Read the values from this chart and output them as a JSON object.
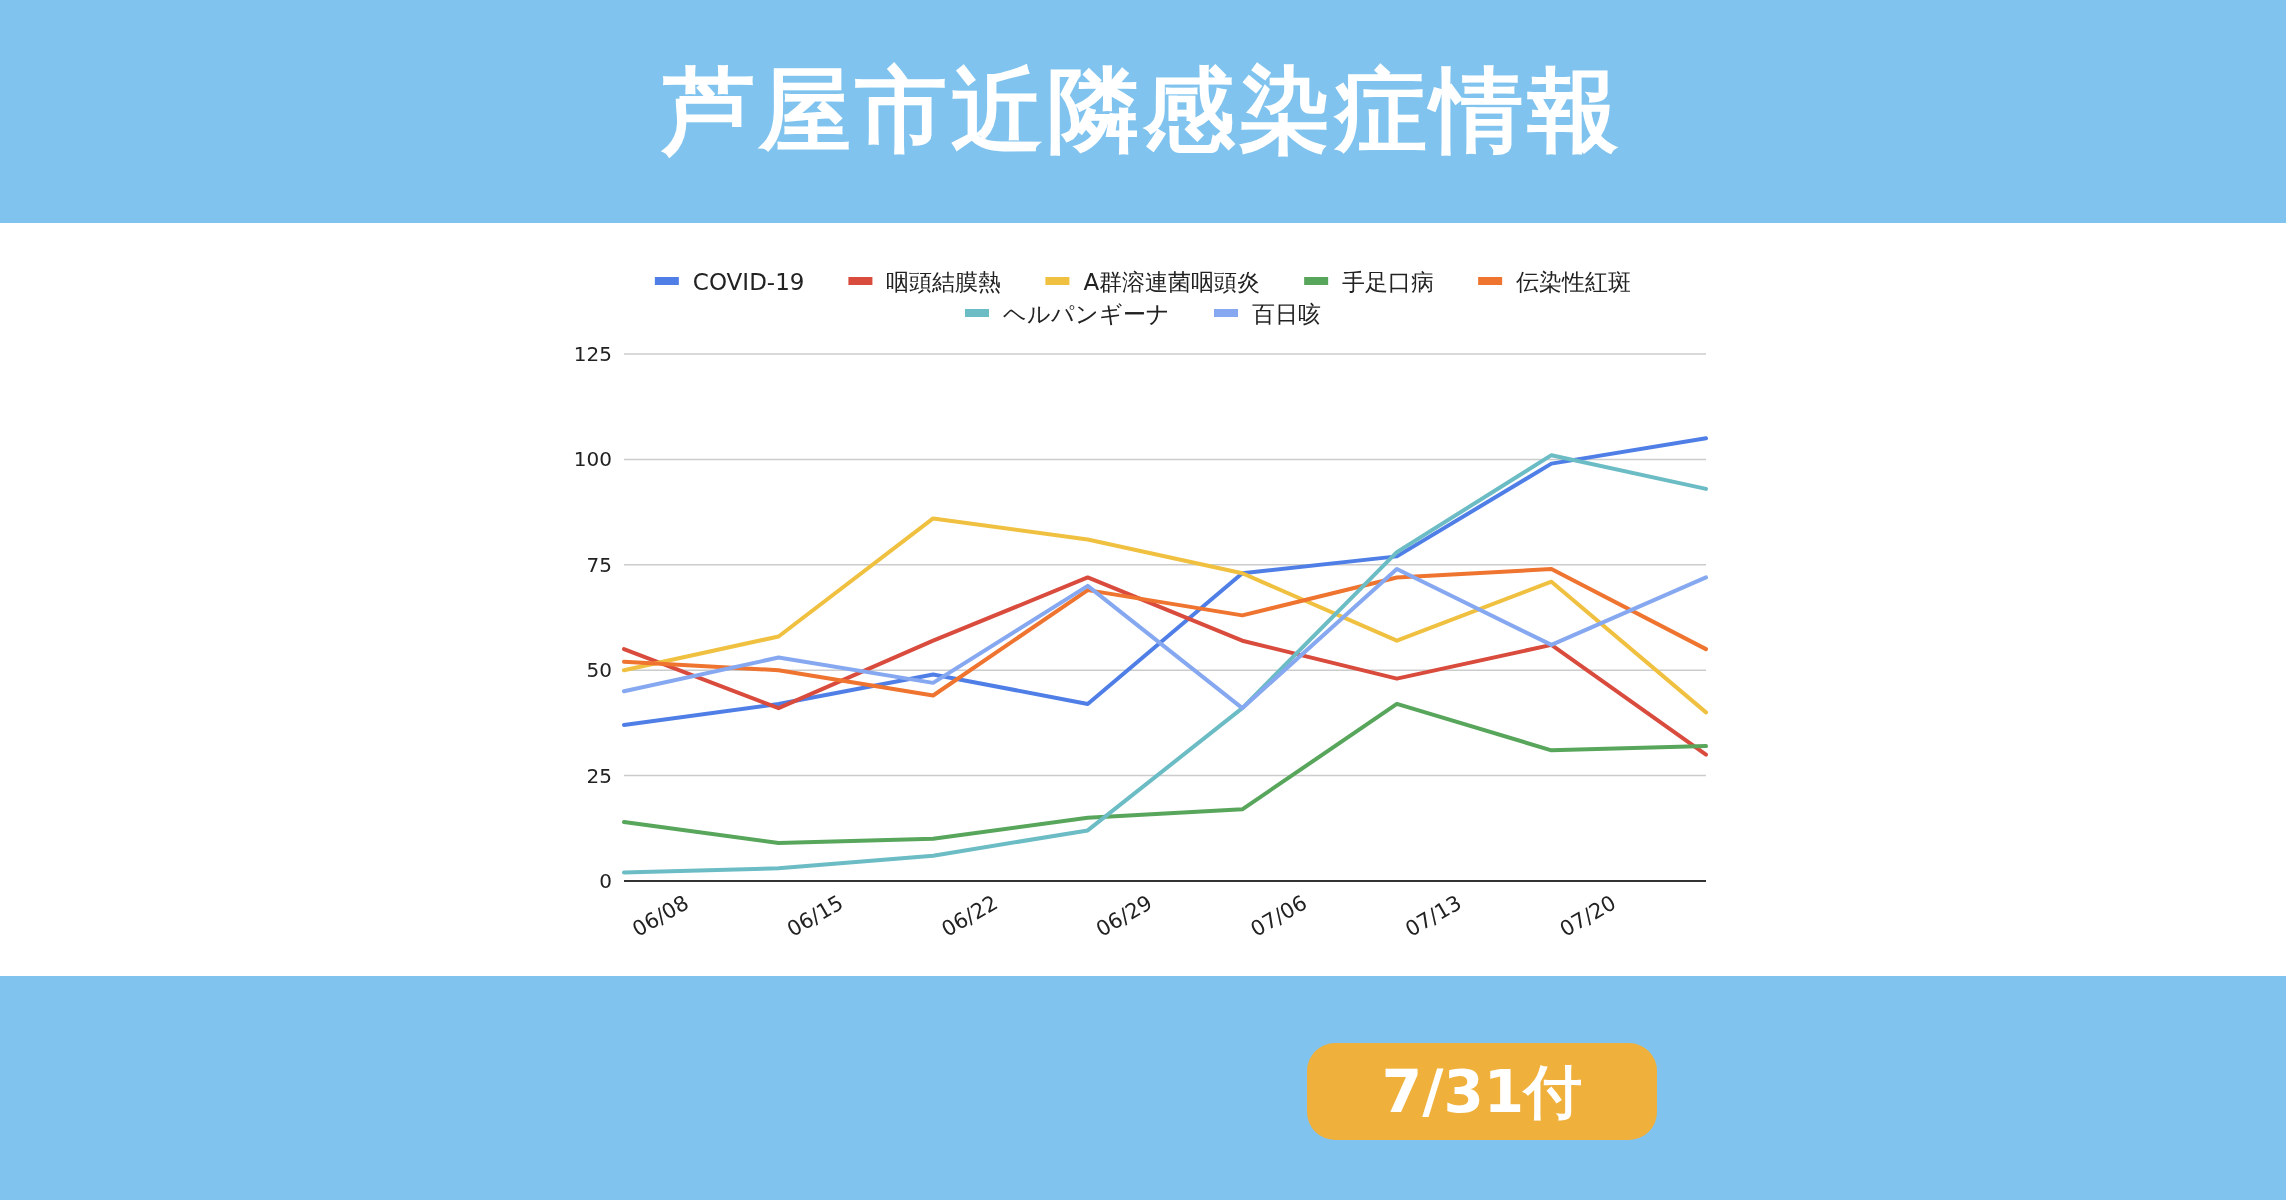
{
  "chart_data": {
    "type": "line",
    "title": "芦屋市近隣感染症情報",
    "annotations": [
      "7/31付"
    ],
    "x": [
      "--06-05",
      "--06-12",
      "--06-19",
      "--06-26",
      "--07-03",
      "--07-10",
      "--07-17",
      "--07-24"
    ],
    "xlim": [
      "--06-05",
      "--07-24"
    ],
    "xticks": [
      {
        "value": "--06-08",
        "label": "06/08"
      },
      {
        "value": "--06-15",
        "label": "06/15"
      },
      {
        "value": "--06-22",
        "label": "06/22"
      },
      {
        "value": "--06-29",
        "label": "06/29"
      },
      {
        "value": "--07-06",
        "label": "07/06"
      },
      {
        "value": "--07-13",
        "label": "07/13"
      },
      {
        "value": "--07-20",
        "label": "07/20"
      }
    ],
    "ylim": [
      0,
      125
    ],
    "yticks": [
      0,
      25,
      50,
      75,
      100,
      125
    ],
    "grid": "y",
    "legend": "top",
    "series": [
      {
        "name": "COVID-19",
        "color": "#4f7fe6",
        "values": [
          37,
          42,
          49,
          42,
          73,
          77,
          99,
          105
        ]
      },
      {
        "name": "咽頭結膜熱",
        "color": "#d94c3d",
        "values": [
          55,
          41,
          57,
          72,
          57,
          48,
          56,
          30
        ]
      },
      {
        "name": "A群溶連菌咽頭炎",
        "color": "#f0c040",
        "values": [
          50,
          58,
          86,
          81,
          73,
          57,
          71,
          40
        ]
      },
      {
        "name": "手足口病",
        "color": "#58a55c",
        "values": [
          14,
          9,
          10,
          15,
          17,
          42,
          31,
          32
        ]
      },
      {
        "name": "伝染性紅斑",
        "color": "#ee7430",
        "values": [
          52,
          50,
          44,
          69,
          63,
          72,
          74,
          55
        ]
      },
      {
        "name": "ヘルパンギーナ",
        "color": "#6bbcc4",
        "values": [
          2,
          3,
          6,
          12,
          41,
          78,
          101,
          93
        ]
      },
      {
        "name": "百日咳",
        "color": "#86a8f0",
        "values": [
          45,
          53,
          47,
          70,
          41,
          74,
          56,
          72
        ]
      }
    ]
  }
}
